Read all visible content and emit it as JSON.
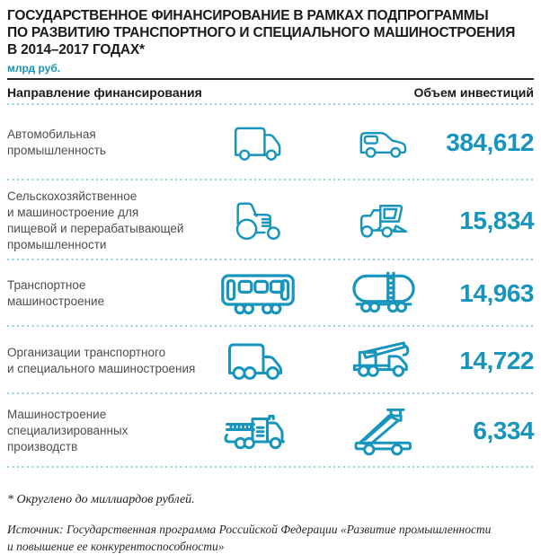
{
  "header": {
    "title": "ГОСУДАРСТВЕННОЕ ФИНАНСИРОВАНИЕ В РАМКАХ ПОДПРОГРАММЫ\nПО РАЗВИТИЮ ТРАНСПОРТНОГО И СПЕЦИАЛЬНОГО МАШИНОСТРОЕНИЯ\nВ 2014–2017 ГОДАХ*",
    "units": "млрд руб."
  },
  "table": {
    "columns": {
      "direction": "Направление финансирования",
      "volume": "Объем инвестиций"
    },
    "rows": [
      {
        "label": "Автомобильная\nпромышленность",
        "icons": [
          "delivery-van-icon",
          "car-icon"
        ],
        "value": "384,612"
      },
      {
        "label": "Сельскохозяйственное\nи машиностроение для\nпищевой и перерабатывающей\nпромышленности",
        "icons": [
          "tractor-icon",
          "combine-harvester-icon"
        ],
        "value": "15,834"
      },
      {
        "label": "Транспортное\nмашиностроение",
        "icons": [
          "railway-car-icon",
          "tank-wagon-icon"
        ],
        "value": "14,963"
      },
      {
        "label": "Организации транспортного\nи специального машиностроения",
        "icons": [
          "truck-icon",
          "crane-truck-icon"
        ],
        "value": "14,722"
      },
      {
        "label": "Машиностроение\nспециализированных\nпроизводств",
        "icons": [
          "fire-truck-icon",
          "boarding-stairs-truck-icon"
        ],
        "value": "6,334"
      }
    ]
  },
  "footer": {
    "footnote": "* Округлено до миллиардов рублей.",
    "source": "Источник: Государственная программа Российской Федерации «Развитие промышленности\nи повышение ее конкурентоспособности»"
  },
  "colors": {
    "accent": "#1795BD",
    "divider": "#8FCEE0",
    "title_text": "#1A1A1A",
    "label_text": "#4D4D4D"
  },
  "chart_data": {
    "type": "table",
    "title": "Государственное финансирование в рамках подпрограммы по развитию транспортного и специального машиностроения в 2014–2017 годах*",
    "units": "млрд руб.",
    "categories": [
      "Автомобильная промышленность",
      "Сельскохозяйственное и машиностроение для пищевой и перерабатывающей промышленности",
      "Транспортное машиностроение",
      "Организации транспортного и специального машиностроения",
      "Машиностроение специализированных производств"
    ],
    "values": [
      384.612,
      15.834,
      14.963,
      14.722,
      6.334
    ],
    "value_labels": [
      "384,612",
      "15,834",
      "14,963",
      "14,722",
      "6,334"
    ],
    "xlabel": "Направление финансирования",
    "ylabel": "Объем инвестиций"
  }
}
